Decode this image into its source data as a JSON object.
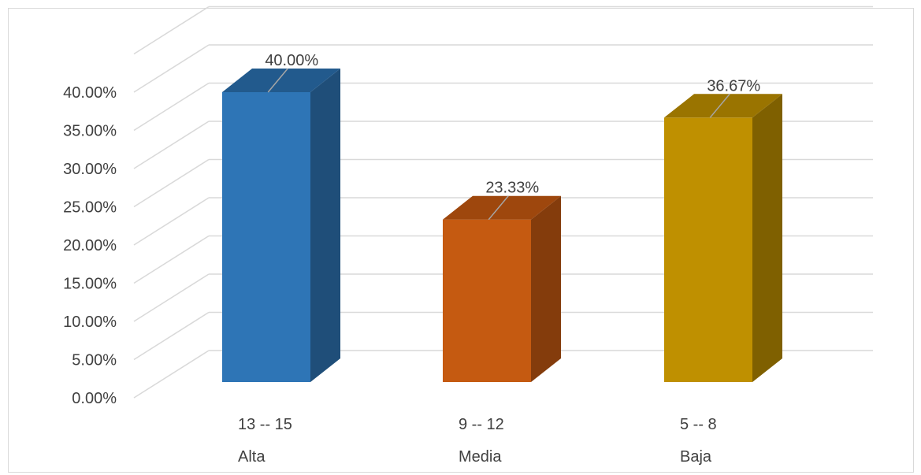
{
  "chart_data": {
    "type": "bar",
    "style": "3d-column",
    "categories": [
      "13 -- 15",
      "9 -- 12",
      "5 -- 8"
    ],
    "groups": [
      "Alta",
      "Media",
      "Baja"
    ],
    "values": [
      40.0,
      23.33,
      36.67
    ],
    "data_labels": [
      "40.00%",
      "23.33%",
      "36.67%"
    ],
    "y_ticks": [
      "0.00%",
      "5.00%",
      "10.00%",
      "15.00%",
      "20.00%",
      "25.00%",
      "30.00%",
      "35.00%",
      "40.00%"
    ],
    "ylim": [
      0,
      40
    ],
    "grid": true,
    "legend": "none",
    "colors": {
      "front": [
        "#2E75B6",
        "#C55A11",
        "#BF9000"
      ],
      "side": [
        "#1F4E79",
        "#843C0C",
        "#7F6000"
      ],
      "top": [
        "#225A8D",
        "#9E470D",
        "#9A7400"
      ],
      "grid": "#d9d9d9",
      "leader": "#a6a6a6"
    }
  }
}
